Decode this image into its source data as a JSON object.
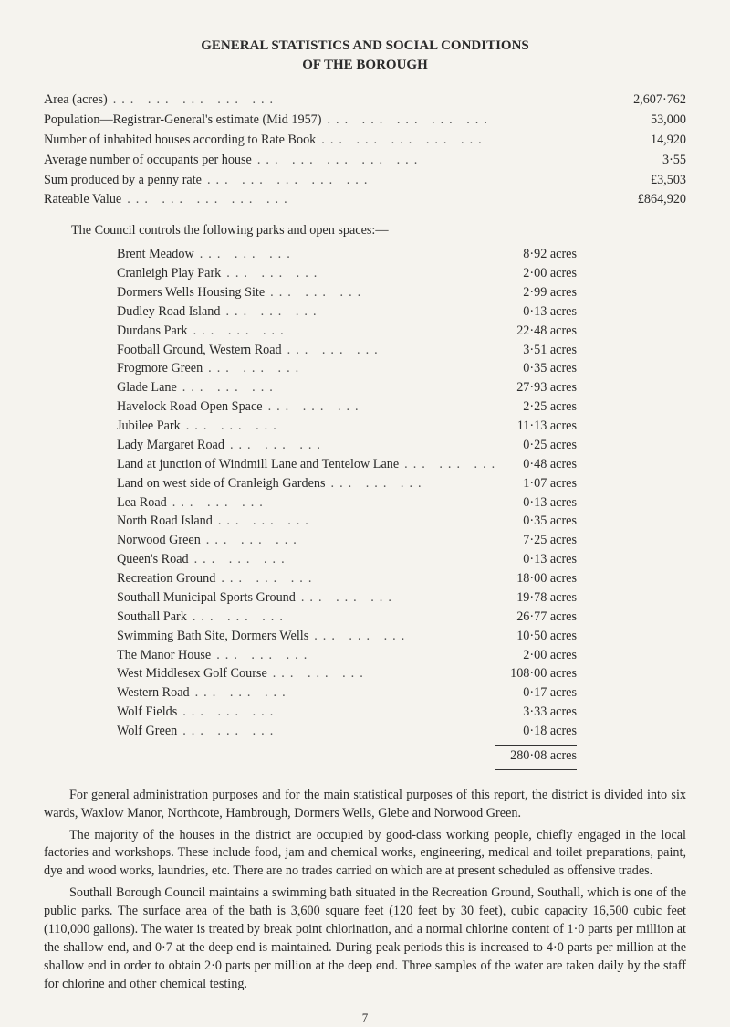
{
  "title_line1": "GENERAL STATISTICS AND SOCIAL CONDITIONS",
  "title_line2": "OF THE BOROUGH",
  "summary": [
    {
      "label": "Area (acres)",
      "value": "2,607·762"
    },
    {
      "label": "Population—Registrar-General's estimate (Mid 1957)",
      "value": "53,000"
    },
    {
      "label": "Number of inhabited houses according to Rate Book",
      "value": "14,920"
    },
    {
      "label": "Average number of occupants per house",
      "value": "3·55"
    },
    {
      "label": "Sum produced by a penny rate",
      "value": "£3,503"
    },
    {
      "label": "Rateable Value",
      "value": "£864,920"
    }
  ],
  "parks_intro": "The Council controls the following parks and open spaces:—",
  "parks": [
    {
      "name": "Brent Meadow",
      "area": "8·92 acres"
    },
    {
      "name": "Cranleigh Play Park",
      "area": "2·00 acres"
    },
    {
      "name": "Dormers Wells Housing Site",
      "area": "2·99 acres"
    },
    {
      "name": "Dudley Road Island",
      "area": "0·13 acres"
    },
    {
      "name": "Durdans Park",
      "area": "22·48 acres"
    },
    {
      "name": "Football Ground, Western Road",
      "area": "3·51 acres"
    },
    {
      "name": "Frogmore Green",
      "area": "0·35 acres"
    },
    {
      "name": "Glade Lane",
      "area": "27·93 acres"
    },
    {
      "name": "Havelock Road Open Space",
      "area": "2·25 acres"
    },
    {
      "name": "Jubilee Park",
      "area": "11·13 acres"
    },
    {
      "name": "Lady Margaret Road",
      "area": "0·25 acres"
    },
    {
      "name": "Land at junction of Windmill Lane and Tentelow Lane",
      "area": "0·48 acres"
    },
    {
      "name": "Land on west side of Cranleigh Gardens",
      "area": "1·07 acres"
    },
    {
      "name": "Lea Road",
      "area": "0·13 acres"
    },
    {
      "name": "North Road Island",
      "area": "0·35 acres"
    },
    {
      "name": "Norwood Green",
      "area": "7·25 acres"
    },
    {
      "name": "Queen's Road",
      "area": "0·13 acres"
    },
    {
      "name": "Recreation Ground",
      "area": "18·00 acres"
    },
    {
      "name": "Southall Municipal Sports Ground",
      "area": "19·78 acres"
    },
    {
      "name": "Southall Park",
      "area": "26·77 acres"
    },
    {
      "name": "Swimming Bath Site, Dormers Wells",
      "area": "10·50 acres"
    },
    {
      "name": "The Manor House",
      "area": "2·00 acres"
    },
    {
      "name": "West Middlesex Golf Course",
      "area": "108·00 acres"
    },
    {
      "name": "Western Road",
      "area": "0·17 acres"
    },
    {
      "name": "Wolf Fields",
      "area": "3·33 acres"
    },
    {
      "name": "Wolf Green",
      "area": "0·18 acres"
    }
  ],
  "parks_total": "280·08 acres",
  "paragraphs": [
    "For general administration purposes and for the main statistical purposes of this report, the district is divided into six wards, Waxlow Manor, Northcote, Hambrough, Dormers Wells, Glebe and Norwood Green.",
    "The majority of the houses in the district are occupied by good-class working people, chiefly engaged in the local factories and workshops. These include food, jam and chemical works, engineering, medical and toilet preparations, paint, dye and wood works, laundries, etc. There are no trades carried on which are at present scheduled as offensive trades.",
    "Southall Borough Council maintains a swimming bath situated in the Recreation Ground, Southall, which is one of the public parks. The surface area of the bath is 3,600 square feet (120 feet by 30 feet), cubic capacity 16,500 cubic feet (110,000 gallons). The water is treated by break point chlorination, and a normal chlorine content of 1·0 parts per million at the shallow end, and 0·7 at the deep end is maintained. During peak periods this is increased to 4·0 parts per million at the shallow end in order to obtain 2·0 parts per million at the deep end. Three samples of the water are taken daily by the staff for chlorine and other chemical testing."
  ],
  "page_number": "7",
  "dots": "..."
}
